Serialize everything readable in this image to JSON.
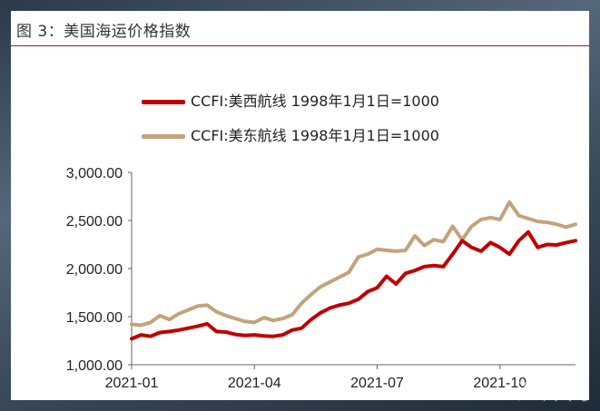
{
  "title": "图 3：美国海运价格指数",
  "watermark": "汇外网",
  "chart_data": {
    "type": "line",
    "title": "图 3：美国海运价格指数",
    "xlabel": "",
    "ylabel": "",
    "ylim": [
      1000,
      3000
    ],
    "yticks": [
      "1,000.00",
      "1,500.00",
      "2,000.00",
      "2,500.00",
      "3,000.00"
    ],
    "ytick_values": [
      1000,
      1500,
      2000,
      2500,
      3000
    ],
    "xticks": [
      "2021-01",
      "2021-04",
      "2021-07",
      "2021-10"
    ],
    "xtick_index": [
      0,
      13,
      26,
      39
    ],
    "legend_position": "top-left",
    "grid": false,
    "series": [
      {
        "name": "CCFI:美西航线 1998年1月1日=1000",
        "color": "#c00000",
        "values": [
          1270,
          1310,
          1295,
          1335,
          1345,
          1360,
          1380,
          1400,
          1425,
          1345,
          1340,
          1315,
          1305,
          1310,
          1300,
          1295,
          1310,
          1360,
          1380,
          1470,
          1540,
          1590,
          1620,
          1640,
          1680,
          1760,
          1800,
          1920,
          1840,
          1950,
          1980,
          2020,
          2030,
          2020,
          2150,
          2290,
          2220,
          2180,
          2270,
          2220,
          2150,
          2290,
          2380,
          2220,
          2250,
          2245,
          2270,
          2290
        ]
      },
      {
        "name": "CCFI:美东航线 1998年1月1日=1000",
        "color": "#c4a27c",
        "values": [
          1420,
          1410,
          1440,
          1510,
          1470,
          1530,
          1570,
          1610,
          1620,
          1550,
          1510,
          1480,
          1450,
          1440,
          1490,
          1460,
          1480,
          1520,
          1640,
          1730,
          1810,
          1860,
          1910,
          1960,
          2120,
          2150,
          2200,
          2190,
          2180,
          2190,
          2340,
          2240,
          2300,
          2280,
          2440,
          2300,
          2440,
          2510,
          2530,
          2510,
          2690,
          2550,
          2520,
          2490,
          2480,
          2460,
          2430,
          2460
        ]
      }
    ]
  }
}
